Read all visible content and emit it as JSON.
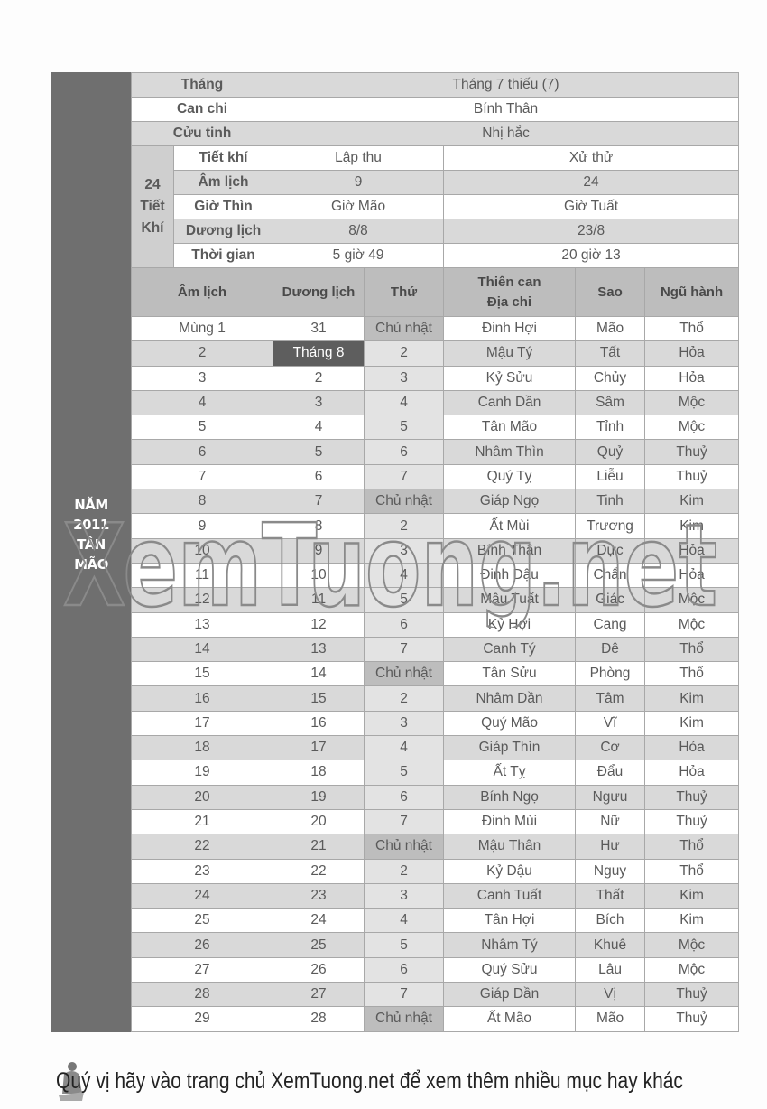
{
  "side_label": [
    "NĂM",
    "2011",
    "TÂN",
    "MÃO"
  ],
  "info": {
    "thang": {
      "label": "Tháng",
      "value": "Tháng 7 thiếu (7)"
    },
    "can_chi": {
      "label": "Can chi",
      "value": "Bính Thân"
    },
    "cuu_tinh": {
      "label": "Cửu tinh",
      "value": "Nhị hắc"
    },
    "tiet_khi_group": "24 Tiết Khí",
    "tiet_khi": {
      "label": "Tiết khí",
      "a": "Lập thu",
      "b": "Xử thử"
    },
    "am_lich": {
      "label": "Âm lịch",
      "a": "9",
      "b": "24"
    },
    "gio_thin": {
      "label": "Giờ Thìn",
      "a": "Giờ Mão",
      "b": "Giờ Tuất"
    },
    "duong_lich": {
      "label": "Dương lịch",
      "a": "8/8",
      "b": "23/8"
    },
    "thoi_gian": {
      "label": "Thời gian",
      "a": "5 giờ 49",
      "b": "20 giờ 13"
    }
  },
  "columns": [
    "Âm lịch",
    "Dương lịch",
    "Thứ",
    "Thiên can Địa chi",
    "Sao",
    "Ngũ hành"
  ],
  "rows": [
    [
      "Mùng 1",
      "31",
      "Chủ nhật",
      "Đinh Hợi",
      "Mão",
      "Thổ"
    ],
    [
      "2",
      "Tháng 8",
      "2",
      "Mậu Tý",
      "Tất",
      "Hỏa"
    ],
    [
      "3",
      "2",
      "3",
      "Kỷ Sửu",
      "Chủy",
      "Hỏa"
    ],
    [
      "4",
      "3",
      "4",
      "Canh Dần",
      "Sâm",
      "Mộc"
    ],
    [
      "5",
      "4",
      "5",
      "Tân Mão",
      "Tỉnh",
      "Mộc"
    ],
    [
      "6",
      "5",
      "6",
      "Nhâm Thìn",
      "Quỷ",
      "Thuỷ"
    ],
    [
      "7",
      "6",
      "7",
      "Quý Tỵ",
      "Liễu",
      "Thuỷ"
    ],
    [
      "8",
      "7",
      "Chủ nhật",
      "Giáp Ngọ",
      "Tinh",
      "Kim"
    ],
    [
      "9",
      "8",
      "2",
      "Ất Mùi",
      "Trương",
      "Kim"
    ],
    [
      "10",
      "9",
      "3",
      "Bính Thân",
      "Dực",
      "Hỏa"
    ],
    [
      "11",
      "10",
      "4",
      "Đinh Dậu",
      "Chẩn",
      "Hỏa"
    ],
    [
      "12",
      "11",
      "5",
      "Mậu Tuất",
      "Giác",
      "Mộc"
    ],
    [
      "13",
      "12",
      "6",
      "Kỷ Hợi",
      "Cang",
      "Mộc"
    ],
    [
      "14",
      "13",
      "7",
      "Canh Tý",
      "Đê",
      "Thổ"
    ],
    [
      "15",
      "14",
      "Chủ nhật",
      "Tân Sửu",
      "Phòng",
      "Thổ"
    ],
    [
      "16",
      "15",
      "2",
      "Nhâm Dần",
      "Tâm",
      "Kim"
    ],
    [
      "17",
      "16",
      "3",
      "Quý Mão",
      "Vĩ",
      "Kim"
    ],
    [
      "18",
      "17",
      "4",
      "Giáp Thìn",
      "Cơ",
      "Hỏa"
    ],
    [
      "19",
      "18",
      "5",
      "Ất Tỵ",
      "Đẩu",
      "Hỏa"
    ],
    [
      "20",
      "19",
      "6",
      "Bính Ngọ",
      "Ngưu",
      "Thuỷ"
    ],
    [
      "21",
      "20",
      "7",
      "Đinh Mùi",
      "Nữ",
      "Thuỷ"
    ],
    [
      "22",
      "21",
      "Chủ nhật",
      "Mậu Thân",
      "Hư",
      "Thổ"
    ],
    [
      "23",
      "22",
      "2",
      "Kỷ Dậu",
      "Nguy",
      "Thổ"
    ],
    [
      "24",
      "23",
      "3",
      "Canh Tuất",
      "Thất",
      "Kim"
    ],
    [
      "25",
      "24",
      "4",
      "Tân Hợi",
      "Bích",
      "Kim"
    ],
    [
      "26",
      "25",
      "5",
      "Nhâm Tý",
      "Khuê",
      "Mộc"
    ],
    [
      "27",
      "26",
      "6",
      "Quý Sửu",
      "Lâu",
      "Mộc"
    ],
    [
      "28",
      "27",
      "7",
      "Giáp Dần",
      "Vị",
      "Thuỷ"
    ],
    [
      "29",
      "28",
      "Chủ nhật",
      "Ất Mão",
      "Mão",
      "Thuỷ"
    ]
  ],
  "watermark": "XemTuong.net",
  "footer": "Quý vị hãy vào trang chủ XemTuong.net để xem thêm nhiều mục hay khác",
  "colors": {
    "side_strip": "#6f6f6f",
    "header": "#bdbdbd",
    "row_alt": "#d9d9d9",
    "highlight": "#5e5e5e"
  }
}
